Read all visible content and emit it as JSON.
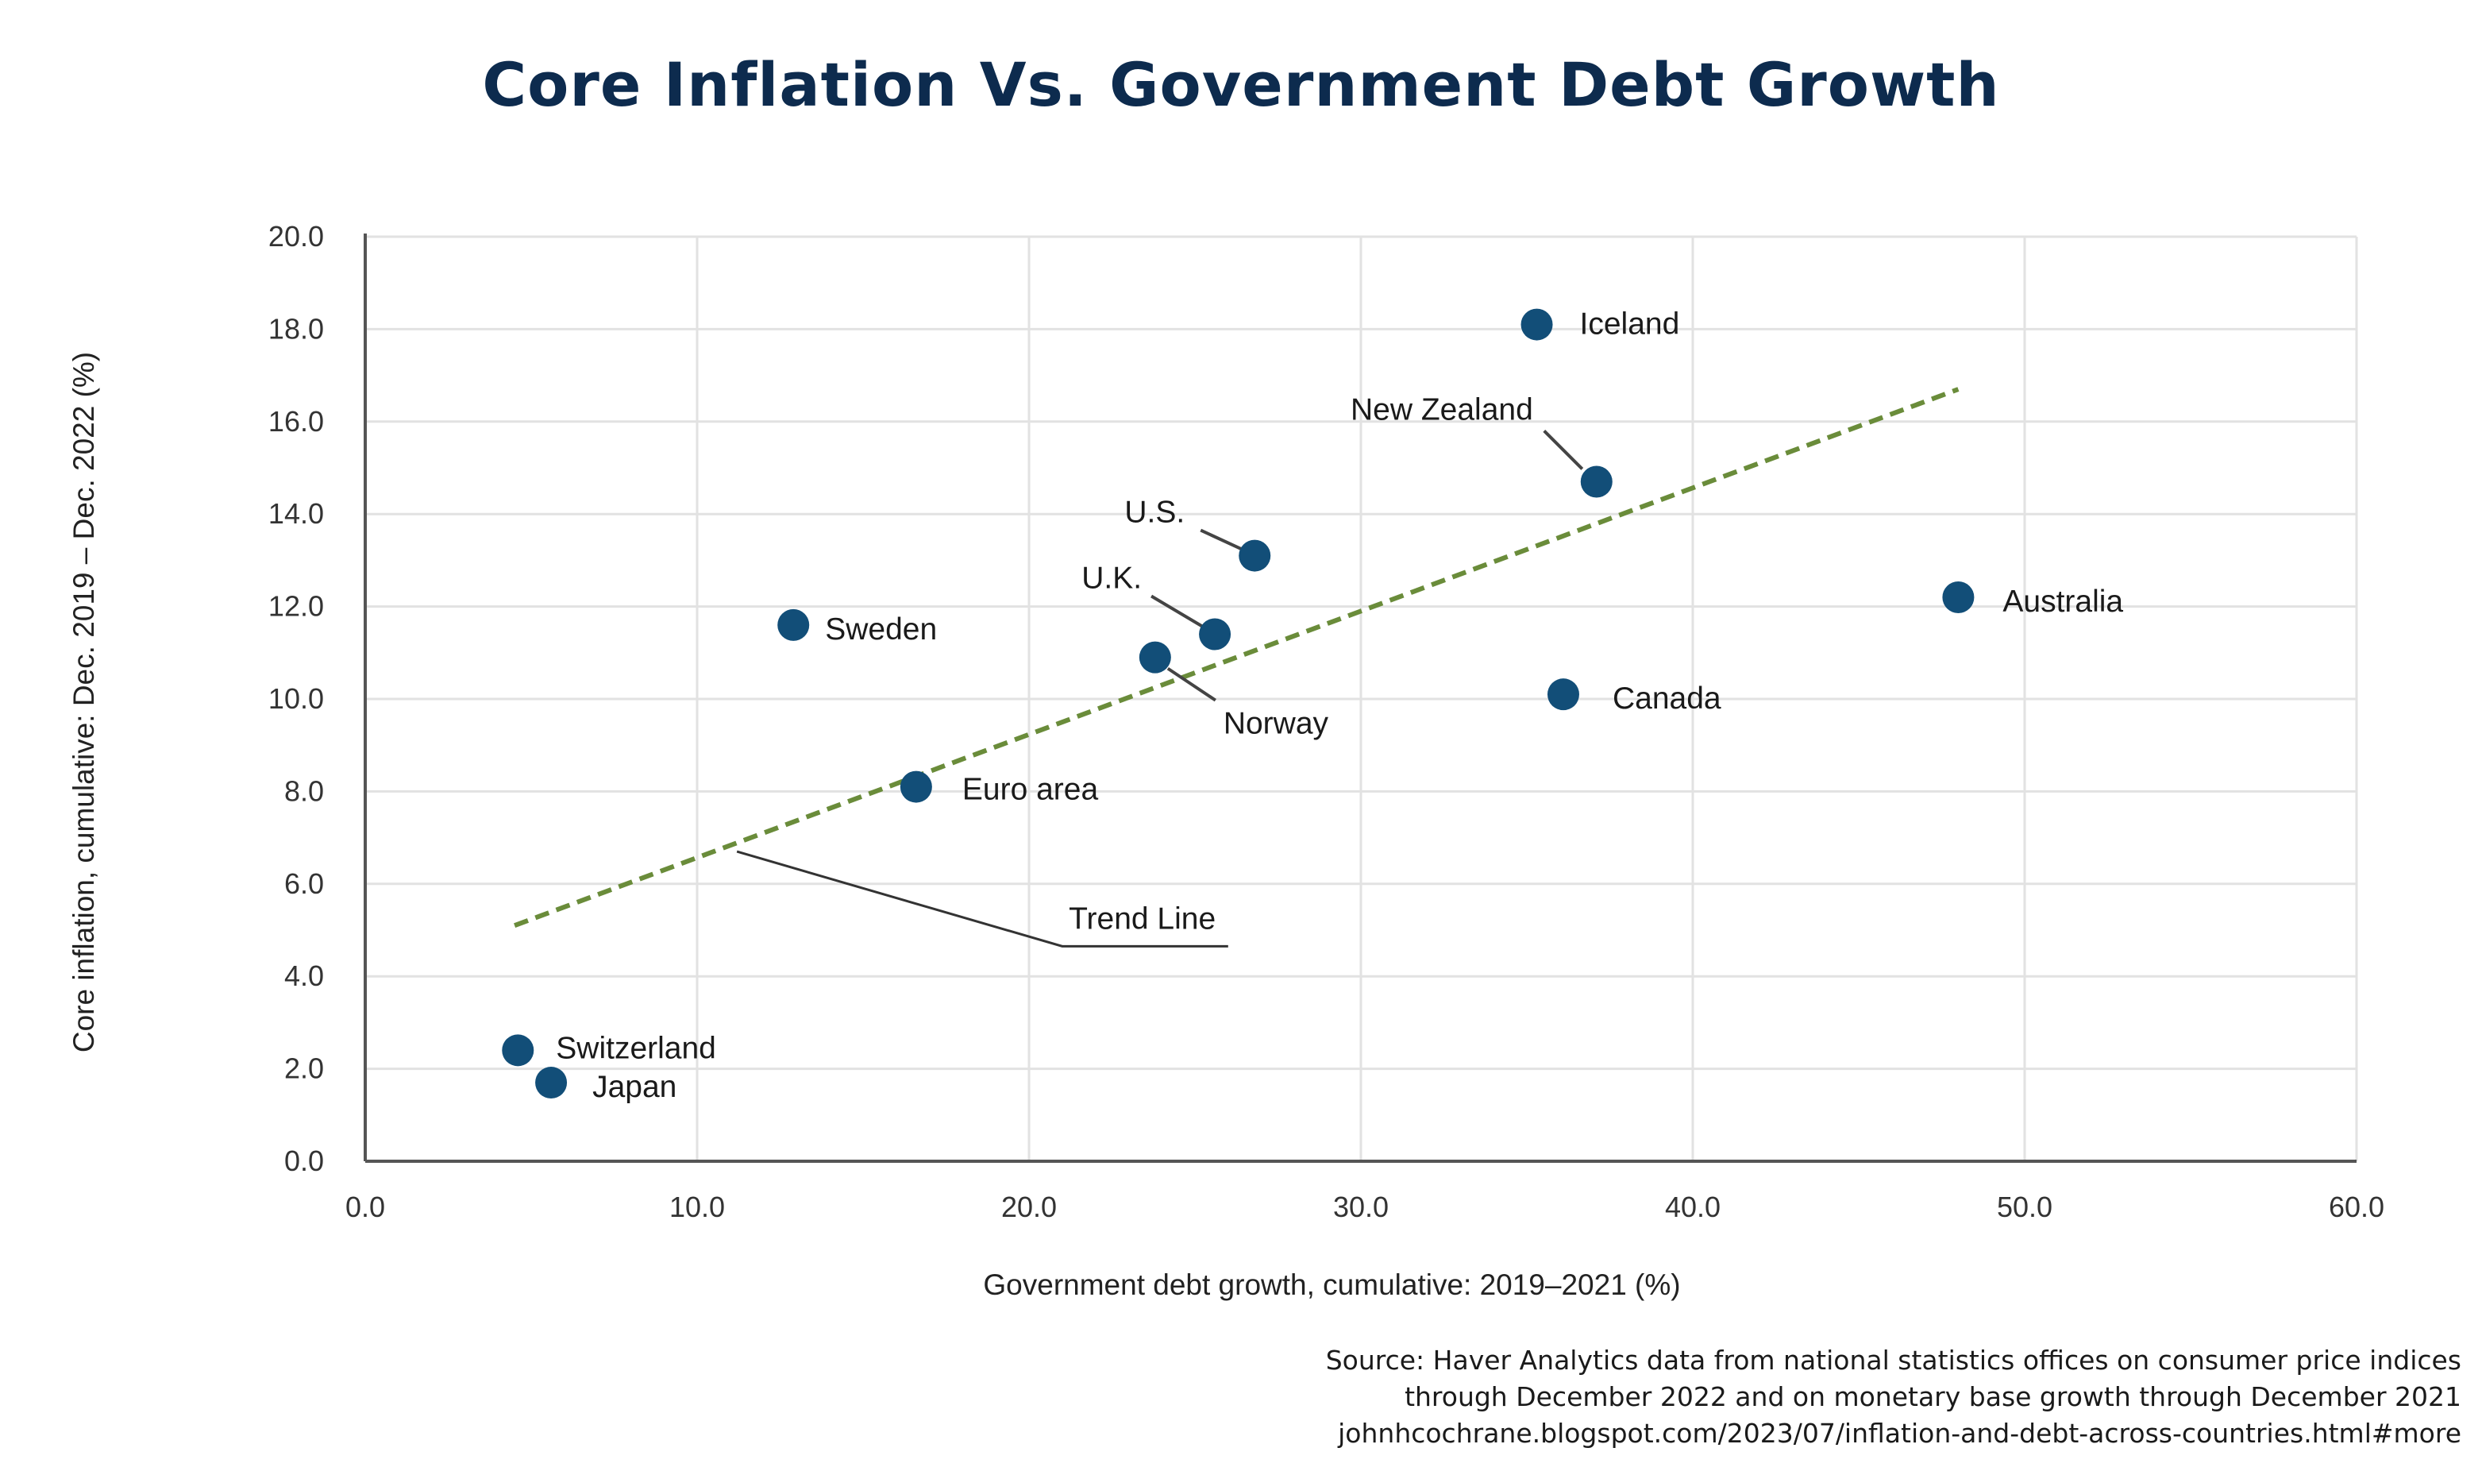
{
  "chart_data": {
    "type": "scatter",
    "title": "Core Inflation Vs. Government Debt Growth",
    "xlabel": "Government debt growth, cumulative: 2019–2021 (%)",
    "ylabel": "Core inflation, cumulative: Dec. 2019 – Dec. 2022 (%)",
    "xlim": [
      0,
      60
    ],
    "ylim": [
      0,
      20
    ],
    "x_ticks": [
      "0.0",
      "10.0",
      "20.0",
      "30.0",
      "40.0",
      "50.0",
      "60.0"
    ],
    "y_ticks": [
      "0.0",
      "2.0",
      "4.0",
      "6.0",
      "8.0",
      "10.0",
      "12.0",
      "14.0",
      "16.0",
      "18.0",
      "20.0"
    ],
    "grid": true,
    "point_color": "#124e78",
    "points": [
      {
        "label": "Iceland",
        "x": 35.3,
        "y": 18.1
      },
      {
        "label": "New Zealand",
        "x": 37.1,
        "y": 14.7
      },
      {
        "label": "U.S.",
        "x": 26.8,
        "y": 13.1
      },
      {
        "label": "U.K.",
        "x": 25.6,
        "y": 11.4
      },
      {
        "label": "Norway",
        "x": 23.8,
        "y": 10.9
      },
      {
        "label": "Sweden",
        "x": 12.9,
        "y": 11.6
      },
      {
        "label": "Australia",
        "x": 48.0,
        "y": 12.2
      },
      {
        "label": "Canada",
        "x": 36.1,
        "y": 10.1
      },
      {
        "label": "Euro area",
        "x": 16.6,
        "y": 8.1
      },
      {
        "label": "Switzerland",
        "x": 4.6,
        "y": 2.4
      },
      {
        "label": "Japan",
        "x": 5.6,
        "y": 1.7
      }
    ],
    "trend_line": {
      "label": "Trend Line",
      "color": "#6a8c3a",
      "x": [
        4.5,
        48.0
      ],
      "y": [
        5.1,
        16.7
      ]
    }
  },
  "source": {
    "line1": "Source: Haver Analytics data from national statistics offices on consumer price indices",
    "line2": "through December 2022 and on monetary base growth through December 2021",
    "line3": "johnhcochrane.blogspot.com/2023/07/inflation-and-debt-across-countries.html#more"
  }
}
